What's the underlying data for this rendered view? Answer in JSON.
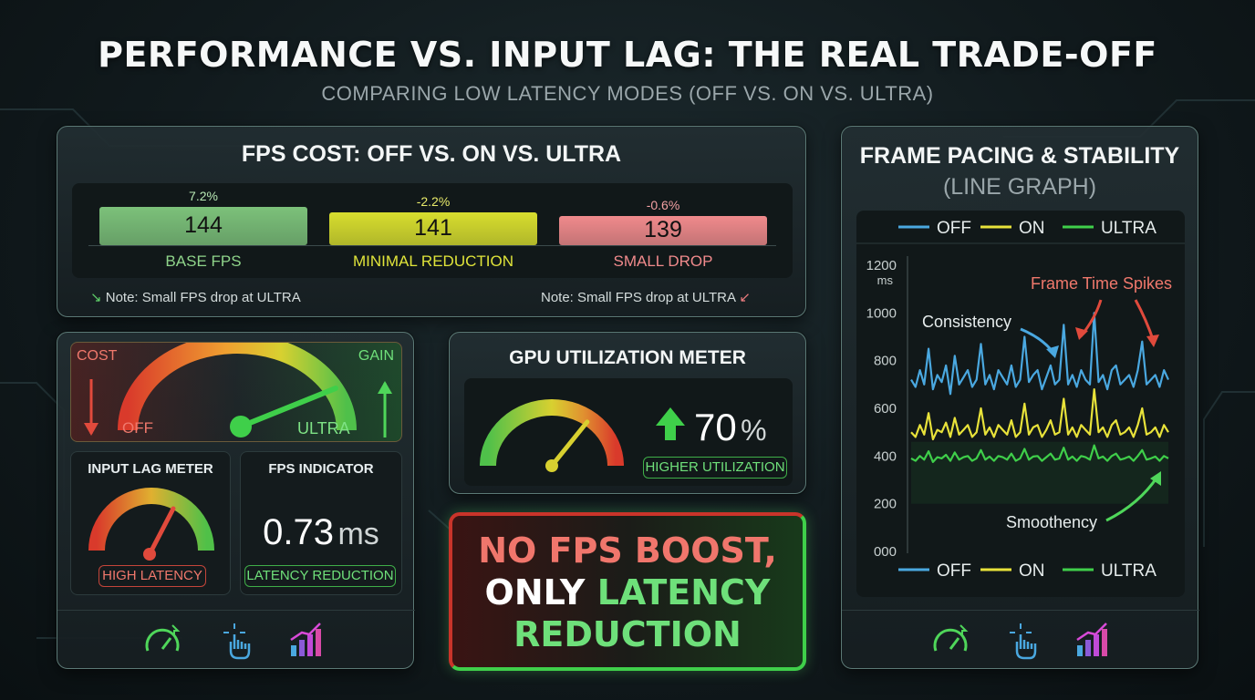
{
  "header": {
    "title": "PERFORMANCE VS. INPUT LAG: THE REAL TRADE-OFF",
    "subtitle": "COMPARING LOW LATENCY MODES (OFF VS. ON VS. ULTRA)"
  },
  "fps_cost": {
    "title": "FPS COST: OFF VS. ON VS. ULTRA",
    "note_left": "Note: Small FPS drop at ULTRA",
    "note_right": "Note: Small FPS drop at ULTRA"
  },
  "gauge_panel": {
    "cost_label": "COST",
    "gain_label": "GAIN",
    "off_label": "OFF",
    "ultra_label": "ULTRA",
    "input_lag": {
      "title": "INPUT LAG METER",
      "badge": "HIGH LATENCY"
    },
    "fps_indicator": {
      "title": "FPS INDICATOR",
      "value": "0.73",
      "unit": "ms",
      "badge": "LATENCY REDUCTION"
    },
    "icons": [
      "speedometer-icon",
      "touch-gesture-icon",
      "bar-chart-icon"
    ]
  },
  "gpu_meter": {
    "title": "GPU UTILIZATION METER",
    "value": "70",
    "unit": "%",
    "badge": "HIGHER UTILIZATION",
    "level": 0.7
  },
  "callout": {
    "line1": "NO FPS BOOST,",
    "line2_a": "ONLY ",
    "line2_b": "LATENCY",
    "line3": "REDUCTION"
  },
  "frame_pacing": {
    "title": "FRAME PACING & STABILITY",
    "subtitle": "(LINE GRAPH)",
    "annotations": {
      "spikes": "Frame Time Spikes",
      "consistency": "Consistency",
      "smoothness": "Smoothency"
    },
    "icons": [
      "speedometer-icon",
      "touch-gesture-icon",
      "bar-chart-icon"
    ]
  },
  "colors": {
    "off": "#4aa8e0",
    "on": "#e8e23a",
    "ultra": "#3fcf4a",
    "bar_off": "#7cc17a",
    "bar_on": "#d8de2e",
    "bar_ultra": "#f08a8c",
    "accent_red": "#e14a3c",
    "accent_green": "#4fd65a"
  },
  "chart_data": [
    {
      "type": "bar",
      "categories": [
        "BASE FPS",
        "MINIMAL REDUCTION",
        "SMALL DROP"
      ],
      "values": [
        144,
        141,
        139
      ],
      "percent_labels": [
        "7.2%",
        "-2.2%",
        "-0.6%"
      ]
    },
    {
      "type": "line",
      "legend": [
        "OFF",
        "ON",
        "ULTRA"
      ],
      "legend_placement": "top and bottom",
      "ylabel": "ms",
      "y_ticks": [
        "000",
        "200",
        "400",
        "600",
        "800",
        "1000",
        "1200"
      ],
      "ylim": [
        0,
        1200
      ],
      "grid": false,
      "x_samples": 60,
      "series": [
        {
          "name": "OFF",
          "values": [
            720,
            690,
            760,
            700,
            850,
            680,
            740,
            710,
            780,
            660,
            820,
            700,
            730,
            760,
            690,
            720,
            870,
            700,
            740,
            680,
            760,
            730,
            700,
            780,
            690,
            720,
            900,
            710,
            740,
            760,
            680,
            730,
            780,
            700,
            720,
            950,
            700,
            740,
            690,
            760,
            720,
            700,
            1000,
            710,
            740,
            680,
            760,
            780,
            700,
            720,
            740,
            690,
            760,
            880,
            700,
            720,
            740,
            690,
            760,
            720
          ]
        },
        {
          "name": "ON",
          "values": [
            500,
            480,
            530,
            490,
            580,
            470,
            510,
            500,
            540,
            480,
            560,
            490,
            510,
            530,
            480,
            500,
            600,
            490,
            520,
            480,
            530,
            510,
            490,
            550,
            480,
            500,
            620,
            490,
            520,
            530,
            480,
            510,
            550,
            490,
            500,
            640,
            490,
            520,
            480,
            530,
            510,
            490,
            680,
            500,
            520,
            480,
            530,
            550,
            490,
            500,
            520,
            480,
            530,
            600,
            490,
            500,
            520,
            480,
            530,
            500
          ]
        },
        {
          "name": "ULTRA",
          "values": [
            390,
            380,
            400,
            385,
            420,
            375,
            395,
            390,
            405,
            380,
            415,
            385,
            395,
            400,
            380,
            390,
            425,
            385,
            398,
            380,
            400,
            395,
            385,
            410,
            380,
            390,
            430,
            385,
            398,
            400,
            380,
            395,
            410,
            385,
            390,
            435,
            385,
            398,
            380,
            400,
            395,
            385,
            445,
            390,
            398,
            380,
            400,
            410,
            385,
            390,
            398,
            380,
            400,
            425,
            385,
            390,
            398,
            380,
            400,
            390
          ]
        }
      ]
    }
  ]
}
